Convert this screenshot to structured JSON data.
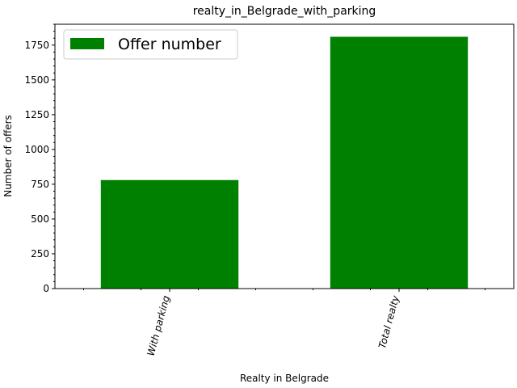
{
  "chart_data": {
    "type": "bar",
    "title": "realty_in_Belgrade_with_parking",
    "xlabel": "Realty in Belgrade",
    "ylabel": "Number of offers",
    "categories": [
      "With parking",
      "Total realty"
    ],
    "series": [
      {
        "name": "Offer number",
        "values": [
          780,
          1810
        ],
        "color": "#008000"
      }
    ],
    "ylim": [
      0,
      1900
    ],
    "yticks": [
      0,
      250,
      500,
      750,
      1000,
      1250,
      1500,
      1750
    ],
    "ytick_labels": [
      "0",
      "250",
      "500",
      "750",
      "1000",
      "1250",
      "1500",
      "1750"
    ],
    "legend": "top-left",
    "grid": false
  }
}
